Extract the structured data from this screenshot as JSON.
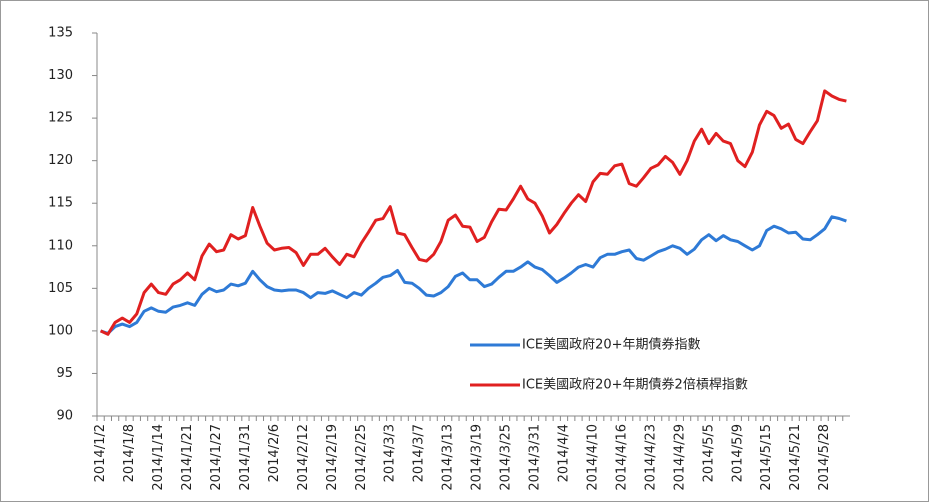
{
  "chart_data": {
    "type": "line",
    "categories": [
      "2014/1/2",
      null,
      null,
      null,
      "2014/1/8",
      null,
      null,
      null,
      "2014/1/14",
      null,
      null,
      null,
      "2014/1/21",
      null,
      null,
      null,
      "2014/1/27",
      null,
      null,
      null,
      "2014/1/31",
      null,
      null,
      null,
      "2014/2/6",
      null,
      null,
      null,
      "2014/2/12",
      null,
      null,
      null,
      "2014/2/19",
      null,
      null,
      null,
      "2014/2/25",
      null,
      null,
      null,
      "2014/3/3",
      null,
      null,
      null,
      "2014/3/7",
      null,
      null,
      null,
      "2014/3/13",
      null,
      null,
      null,
      "2014/3/19",
      null,
      null,
      null,
      "2014/3/25",
      null,
      null,
      null,
      "2014/3/31",
      null,
      null,
      null,
      "2014/4/4",
      null,
      null,
      null,
      "2014/4/10",
      null,
      null,
      null,
      "2014/4/16",
      null,
      null,
      null,
      "2014/4/23",
      null,
      null,
      null,
      "2014/4/29",
      null,
      null,
      null,
      "2014/5/5",
      null,
      null,
      null,
      "2014/5/9",
      null,
      null,
      null,
      "2014/5/15",
      null,
      null,
      null,
      "2014/5/21",
      null,
      null,
      null,
      "2014/5/28",
      null,
      null,
      null
    ],
    "series": [
      {
        "name": "ICE美國政府20+年期債券指數",
        "color": "#2e7ad6",
        "values": [
          100,
          99.7,
          100.5,
          100.8,
          100.5,
          101,
          102.3,
          102.7,
          102.3,
          102.2,
          102.8,
          103,
          103.3,
          103,
          104.3,
          105,
          104.6,
          104.8,
          105.5,
          105.3,
          105.6,
          107,
          106,
          105.2,
          104.8,
          104.7,
          104.8,
          104.8,
          104.5,
          103.9,
          104.5,
          104.4,
          104.7,
          104.3,
          103.9,
          104.5,
          104.2,
          105,
          105.6,
          106.3,
          106.5,
          107.1,
          105.7,
          105.6,
          105,
          104.2,
          104.1,
          104.5,
          105.2,
          106.4,
          106.8,
          106,
          106,
          105.2,
          105.5,
          106.3,
          107,
          107,
          107.5,
          108.1,
          107.5,
          107.2,
          106.5,
          105.7,
          106.2,
          106.8,
          107.5,
          107.8,
          107.5,
          108.6,
          109,
          109,
          109.3,
          109.5,
          108.5,
          108.3,
          108.8,
          109.3,
          109.6,
          110,
          109.7,
          109,
          109.6,
          110.7,
          111.3,
          110.6,
          111.2,
          110.7,
          110.5,
          110,
          109.5,
          110,
          111.8,
          112.3,
          112,
          111.5,
          111.6,
          110.8,
          110.7,
          111.3,
          112,
          113.4,
          113.2,
          112.9
        ]
      },
      {
        "name": "ICE美國政府20+年期債券2倍槓桿指數",
        "color": "#e02020",
        "values": [
          100,
          99.6,
          101,
          101.5,
          101,
          102,
          104.5,
          105.5,
          104.5,
          104.3,
          105.5,
          106,
          106.8,
          106,
          108.8,
          110.2,
          109.3,
          109.5,
          111.3,
          110.8,
          111.2,
          114.5,
          112.3,
          110.3,
          109.5,
          109.7,
          109.8,
          109.2,
          107.7,
          109,
          109,
          109.7,
          108.7,
          107.8,
          109,
          108.7,
          110.3,
          111.6,
          113,
          113.2,
          114.6,
          111.5,
          111.3,
          109.8,
          108.4,
          108.2,
          109,
          110.5,
          113,
          113.6,
          112.3,
          112.2,
          110.5,
          111,
          112.8,
          114.3,
          114.2,
          115.5,
          117,
          115.5,
          115,
          113.5,
          111.5,
          112.5,
          113.8,
          115,
          116,
          115.2,
          117.5,
          118.5,
          118.4,
          119.4,
          119.6,
          117.3,
          117,
          118,
          119.1,
          119.5,
          120.5,
          119.8,
          118.4,
          120,
          122.3,
          123.7,
          122,
          123.2,
          122.3,
          122,
          120,
          119.3,
          121,
          124.2,
          125.8,
          125.3,
          123.8,
          124.3,
          122.5,
          122,
          123.4,
          124.7,
          128.2,
          127.6,
          127.2,
          127
        ]
      }
    ],
    "ylim": [
      90,
      135
    ],
    "yticks": [
      90,
      95,
      100,
      105,
      110,
      115,
      120,
      125,
      130,
      135
    ],
    "grid": false,
    "legend": "lower right"
  }
}
